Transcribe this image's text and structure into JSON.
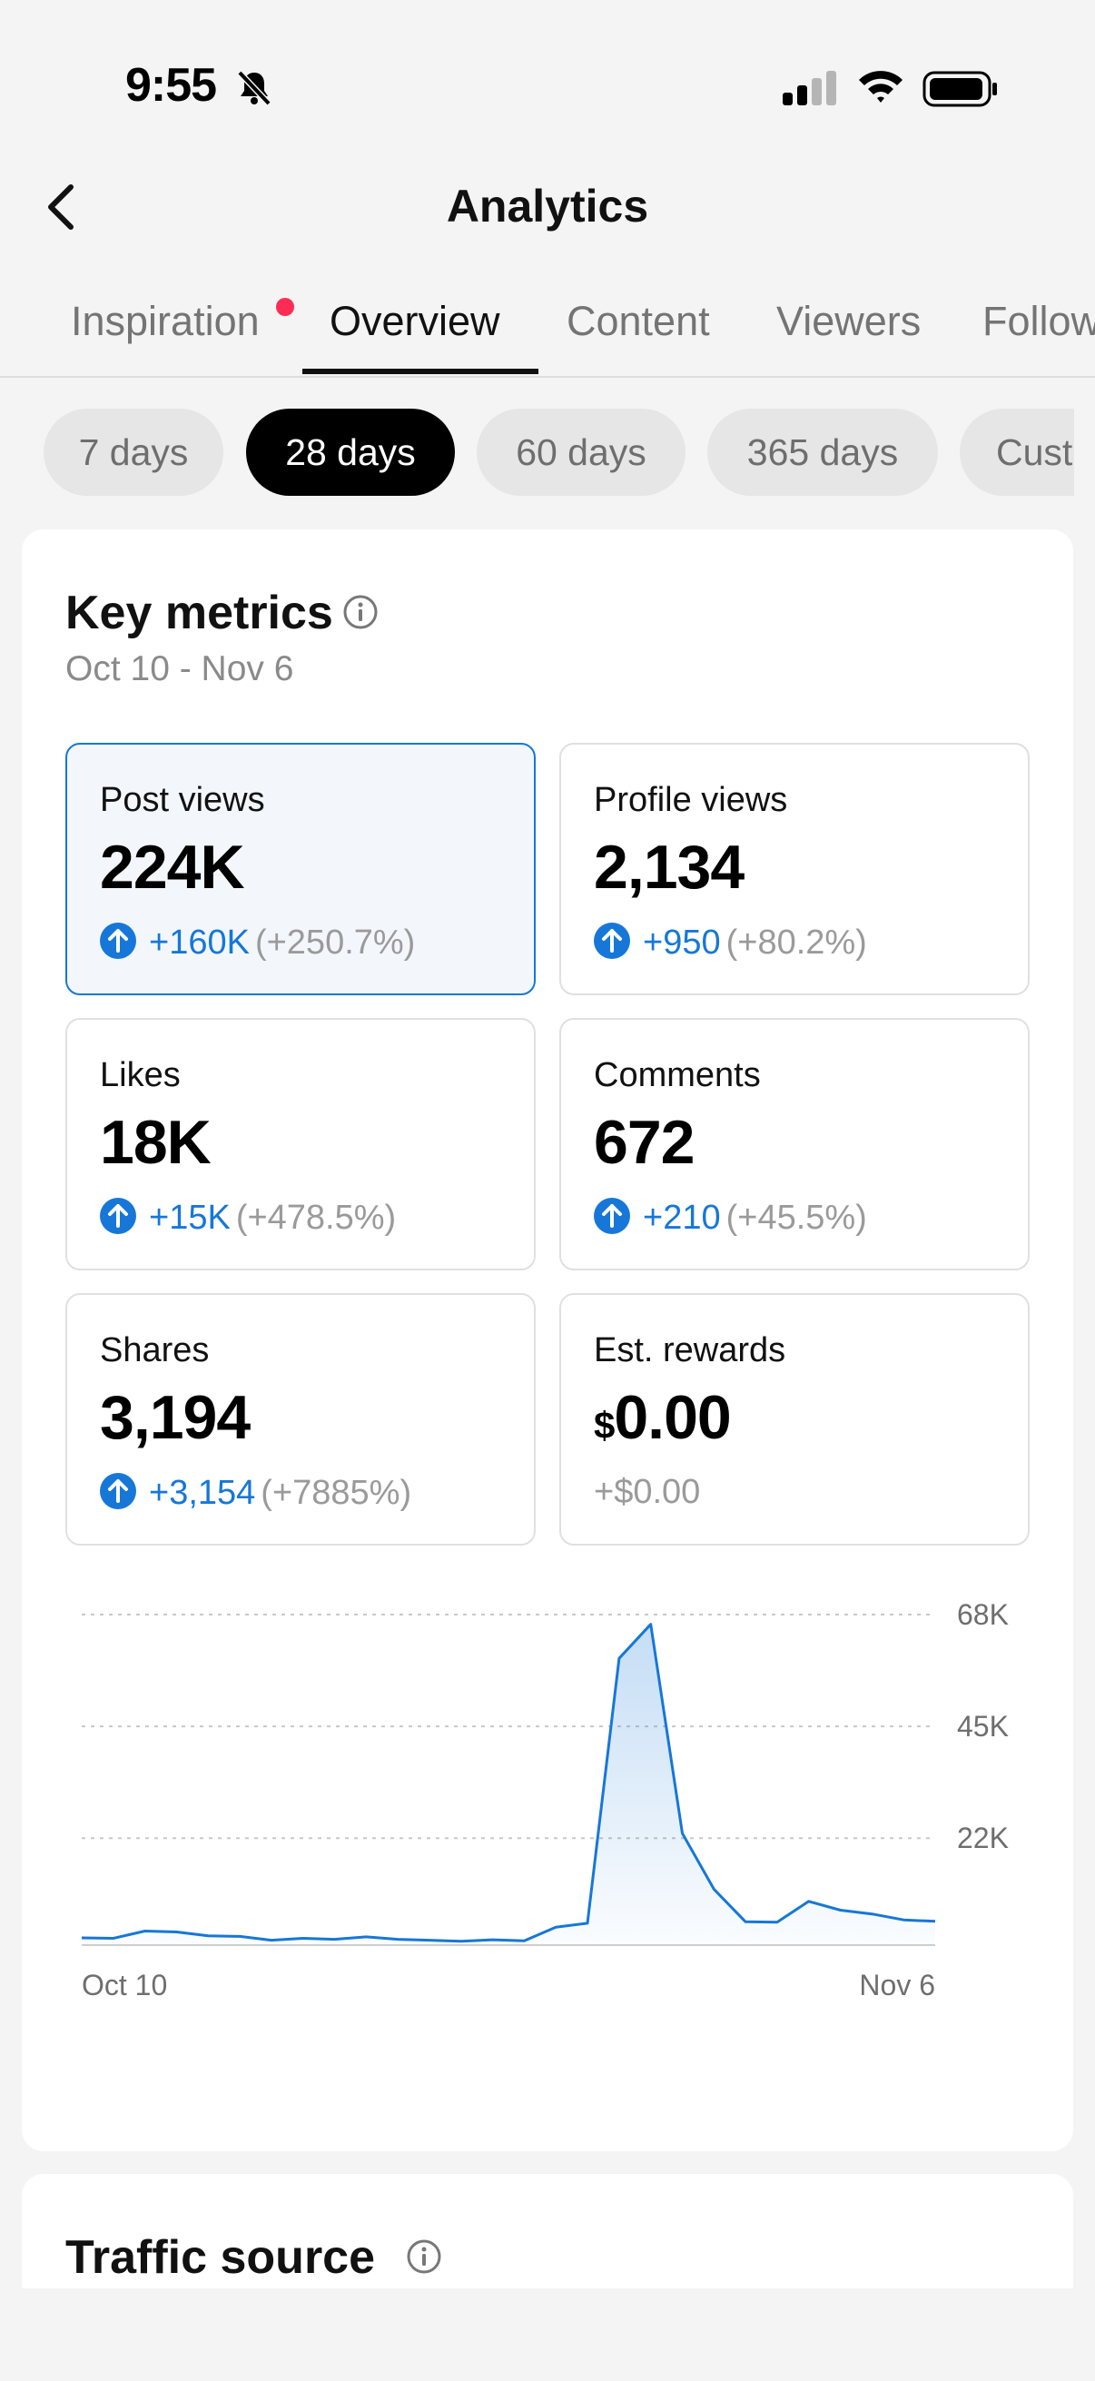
{
  "status": {
    "time": "9:55"
  },
  "header": {
    "title": "Analytics"
  },
  "tabs": [
    {
      "label": "Inspiration",
      "has_dot": true
    },
    {
      "label": "Overview",
      "active": true
    },
    {
      "label": "Content"
    },
    {
      "label": "Viewers"
    },
    {
      "label": "Followers"
    }
  ],
  "periods": [
    {
      "label": "7 days"
    },
    {
      "label": "28 days",
      "active": true
    },
    {
      "label": "60 days"
    },
    {
      "label": "365 days"
    },
    {
      "label": "Custom"
    }
  ],
  "key_metrics": {
    "title": "Key metrics",
    "date_range": "Oct 10 - Nov 6",
    "items": [
      {
        "label": "Post views",
        "value": "224K",
        "delta": "+160K",
        "pct": "(+250.7%)",
        "selected": true
      },
      {
        "label": "Profile views",
        "value": "2,134",
        "delta": "+950",
        "pct": "(+80.2%)"
      },
      {
        "label": "Likes",
        "value": "18K",
        "delta": "+15K",
        "pct": "(+478.5%)"
      },
      {
        "label": "Comments",
        "value": "672",
        "delta": "+210",
        "pct": "(+45.5%)"
      },
      {
        "label": "Shares",
        "value": "3,194",
        "delta": "+3,154",
        "pct": "(+7885%)"
      },
      {
        "label": "Est. rewards",
        "currency": "$",
        "value": "0.00",
        "change": "+$0.00"
      }
    ]
  },
  "chart_data": {
    "type": "area",
    "title": "Post views",
    "x_start_label": "Oct 10",
    "x_end_label": "Nov 6",
    "y_ticks": [
      22000,
      45000,
      68000
    ],
    "y_tick_labels": [
      "22K",
      "45K",
      "68K"
    ],
    "ylim": [
      0,
      68000
    ],
    "values": [
      1500,
      1400,
      2900,
      2700,
      1900,
      1800,
      1000,
      1400,
      1200,
      1700,
      1200,
      1000,
      800,
      1100,
      900,
      3700,
      4500,
      59000,
      66000,
      23000,
      11500,
      4800,
      4700,
      9000,
      7200,
      6400,
      5200,
      4900
    ],
    "color": "#1677d8"
  },
  "traffic": {
    "title": "Traffic source"
  }
}
